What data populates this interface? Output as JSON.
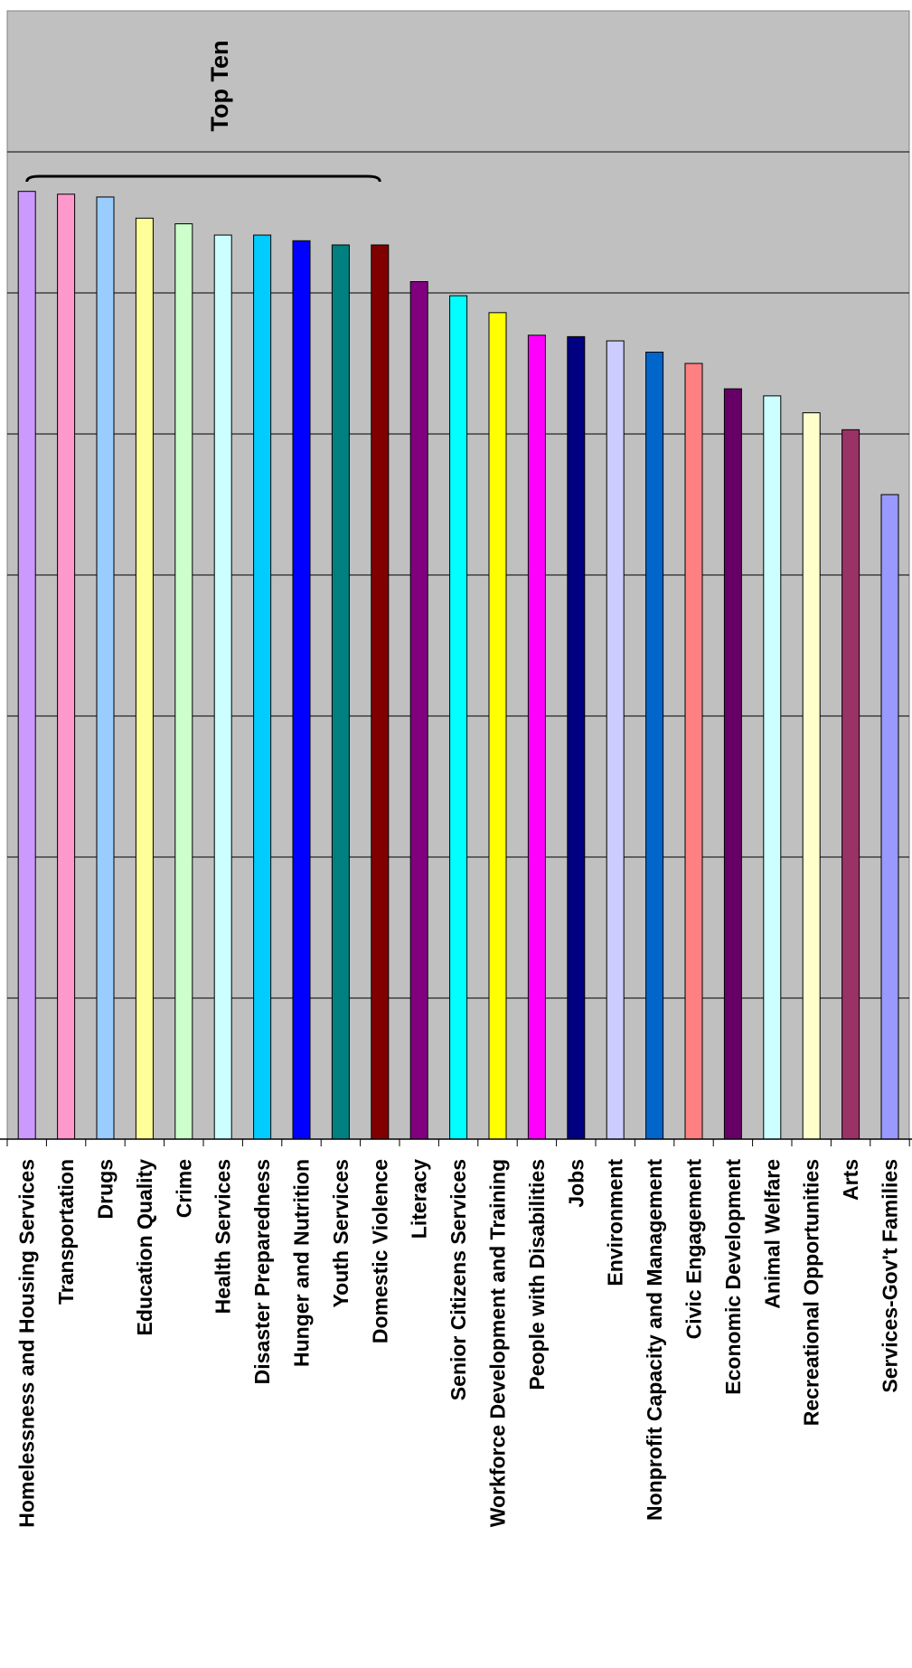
{
  "chart_data": {
    "type": "bar",
    "orientation": "vertical",
    "grid": true,
    "legend": "none",
    "ylim": [
      0,
      8
    ],
    "categories": [
      "Homelessness and Housing Services",
      "Transportation",
      "Drugs",
      "Education Quality",
      "Crime",
      "Health Services",
      "Disaster Preparedness",
      "Hunger and Nutrition",
      "Youth Services",
      "Domestic Violence",
      "Literacy",
      "Senior Citizens Services",
      "Workforce Development and Training",
      "People with Disabilities",
      "Jobs",
      "Environment",
      "Nonprofit Capacity and Management",
      "Civic Engagement",
      "Economic Development",
      "Animal Welfare",
      "Recreational Opportunities",
      "Arts",
      "Services-Gov't Families"
    ],
    "values": [
      6.72,
      6.7,
      6.68,
      6.53,
      6.49,
      6.41,
      6.41,
      6.37,
      6.34,
      6.34,
      6.08,
      5.98,
      5.86,
      5.7,
      5.69,
      5.66,
      5.58,
      5.5,
      5.32,
      5.27,
      5.15,
      5.03,
      4.57
    ],
    "colors": [
      "#cc99ff",
      "#ff99cc",
      "#99ccff",
      "#ffff99",
      "#ccffcc",
      "#ccffff",
      "#00ccff",
      "#0000ff",
      "#008080",
      "#800000",
      "#800080",
      "#00ffff",
      "#ffff00",
      "#ff00ff",
      "#000080",
      "#ccccff",
      "#0066cc",
      "#ff8080",
      "#660066",
      "#ccffff",
      "#ffffcc",
      "#993366",
      "#9999ff"
    ],
    "annotations": [
      {
        "text": "Top Ten",
        "span": [
          0,
          9
        ]
      }
    ]
  }
}
